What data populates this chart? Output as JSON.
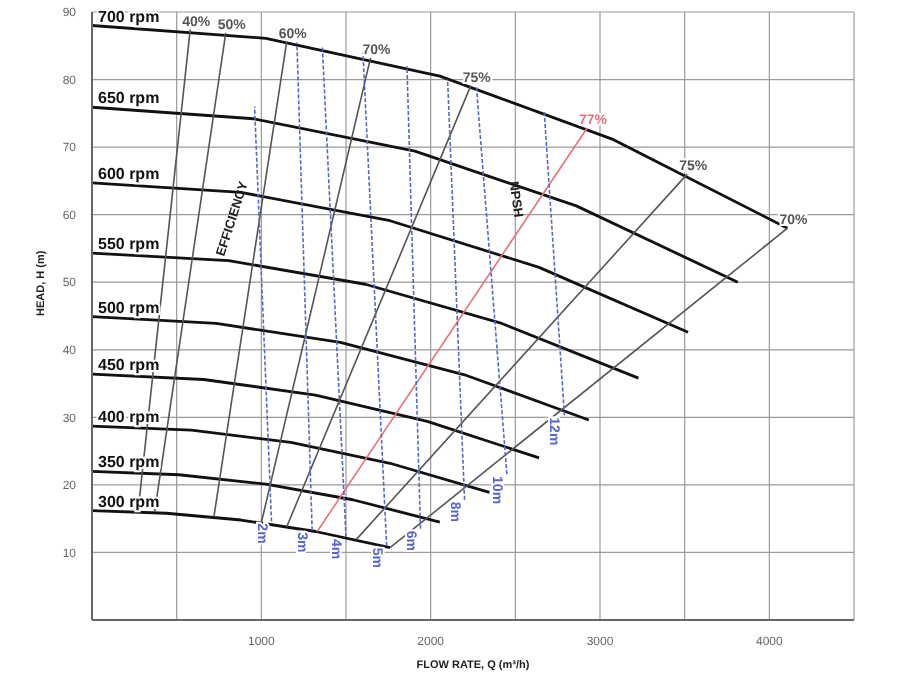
{
  "chart_data": {
    "type": "line",
    "xlabel": "FLOW RATE, Q (m³/h)",
    "ylabel": "HEAD, H (m)",
    "xlim": [
      0,
      4500
    ],
    "ylim": [
      0,
      90
    ],
    "xticks": [
      {
        "value": 500,
        "label": null
      },
      1000,
      {
        "value": 1500,
        "label": null
      },
      2000,
      {
        "value": 2500,
        "label": null
      },
      3000,
      {
        "value": 3500,
        "label": null
      },
      4000,
      {
        "value": 4500,
        "label": null
      }
    ],
    "yticks": [
      {
        "value": 0,
        "label": null
      },
      10,
      20,
      30,
      40,
      50,
      60,
      70,
      80,
      90
    ],
    "grid": true,
    "legend": false,
    "marker": "none",
    "line_style": "solid",
    "annotations": [
      "EFFICIENCY",
      "NPSH"
    ],
    "series": [
      {
        "name": "300 rpm",
        "color": "#111111",
        "x": [
          0,
          440,
          880,
          1320,
          1760
        ],
        "values": [
          16.2,
          15.8,
          14.8,
          13.1,
          10.7
        ]
      },
      {
        "name": "350 rpm",
        "color": "#111111",
        "x": [
          0,
          514,
          1027,
          1540,
          2054
        ],
        "values": [
          22.0,
          21.5,
          20.1,
          17.8,
          14.5
        ]
      },
      {
        "name": "400 rpm",
        "color": "#111111",
        "x": [
          0,
          587,
          1174,
          1760,
          2347
        ],
        "values": [
          28.7,
          28.1,
          26.3,
          23.2,
          18.9
        ]
      },
      {
        "name": "450 rpm",
        "color": "#111111",
        "x": [
          0,
          660,
          1320,
          1980,
          2640
        ],
        "values": [
          36.4,
          35.6,
          33.3,
          29.4,
          24.0
        ]
      },
      {
        "name": "500 rpm",
        "color": "#111111",
        "x": [
          0,
          734,
          1467,
          2200,
          2934
        ],
        "values": [
          44.9,
          43.9,
          41.1,
          36.3,
          29.6
        ]
      },
      {
        "name": "550 rpm",
        "color": "#111111",
        "x": [
          0,
          807,
          1614,
          2420,
          3227
        ],
        "values": [
          54.3,
          53.2,
          49.7,
          43.9,
          35.8
        ]
      },
      {
        "name": "600 rpm",
        "color": "#111111",
        "x": [
          0,
          880,
          1760,
          2640,
          3520
        ],
        "values": [
          64.7,
          63.3,
          59.1,
          52.2,
          42.6
        ]
      },
      {
        "name": "650 rpm",
        "color": "#111111",
        "x": [
          0,
          954,
          1907,
          2860,
          3814
        ],
        "values": [
          75.9,
          74.2,
          69.4,
          61.3,
          50.0
        ]
      },
      {
        "name": "700 rpm",
        "color": "#111111",
        "x": [
          0,
          1027,
          2054,
          3080,
          4107
        ],
        "values": [
          88.0,
          86.1,
          80.5,
          71.1,
          58.0
        ]
      },
      {
        "name": "40%",
        "color": "#555555",
        "x": [
          580,
          272
        ],
        "values": [
          87.4,
          16.1
        ]
      },
      {
        "name": "50%",
        "color": "#555555",
        "x": [
          790,
          370
        ],
        "values": [
          86.9,
          16.0
        ]
      },
      {
        "name": "60%",
        "color": "#555555",
        "x": [
          1150,
          720
        ],
        "values": [
          85.6,
          15.3
        ]
      },
      {
        "name": "70%",
        "color": "#555555",
        "x": [
          1645,
          1000
        ],
        "values": [
          83.2,
          14.4
        ]
      },
      {
        "name": "75%",
        "color": "#555555",
        "x": [
          2237,
          1150
        ],
        "values": [
          79.1,
          13.8
        ]
      },
      {
        "name": "77%",
        "color": "#e8707a",
        "x": [
          2923,
          1330
        ],
        "values": [
          72.8,
          13.1
        ]
      },
      {
        "name": "75%",
        "color": "#555555",
        "x": [
          3515,
          1560
        ],
        "values": [
          66.0,
          11.9
        ]
      },
      {
        "name": "70%",
        "color": "#555555",
        "x": [
          4107,
          1760
        ],
        "values": [
          58.0,
          10.7
        ]
      },
      {
        "name": "2m",
        "color": "#5566cc",
        "line_style": "dashed",
        "x": [
          1060,
          960
        ],
        "values": [
          14.6,
          76
        ]
      },
      {
        "name": "3m",
        "color": "#5566cc",
        "line_style": "dashed",
        "x": [
          1300,
          1210
        ],
        "values": [
          13.3,
          85.5
        ]
      },
      {
        "name": "4m",
        "color": "#5566cc",
        "line_style": "dashed",
        "x": [
          1500,
          1360
        ],
        "values": [
          12.3,
          85
        ]
      },
      {
        "name": "5m",
        "color": "#5566cc",
        "line_style": "dashed",
        "x": [
          1740,
          1600
        ],
        "values": [
          11.0,
          84
        ]
      },
      {
        "name": "6m",
        "color": "#5566cc",
        "line_style": "dashed",
        "x": [
          1940,
          1860
        ],
        "values": [
          13.5,
          82
        ]
      },
      {
        "name": "8m",
        "color": "#5566cc",
        "line_style": "dashed",
        "x": [
          2200,
          2100
        ],
        "values": [
          17.8,
          80
        ]
      },
      {
        "name": "10m",
        "color": "#5566cc",
        "line_style": "dashed",
        "x": [
          2450,
          2270
        ],
        "values": [
          21.6,
          79
        ]
      },
      {
        "name": "12m",
        "color": "#5566cc",
        "line_style": "dashed",
        "x": [
          2790,
          2670
        ],
        "values": [
          30.3,
          75.5
        ]
      }
    ]
  }
}
